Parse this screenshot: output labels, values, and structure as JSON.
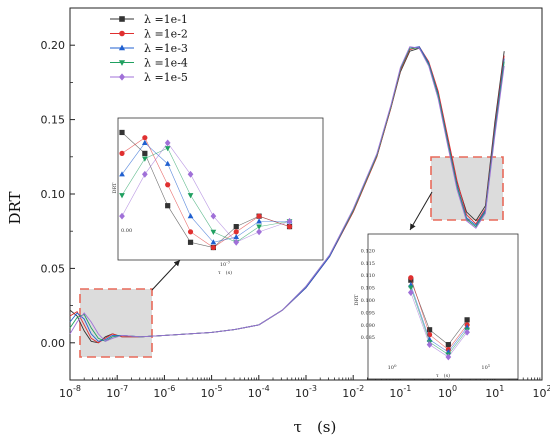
{
  "chart_data": {
    "type": "line",
    "title": "",
    "xlabel": "τ　(s)",
    "ylabel": "DRT",
    "x_scale": "log",
    "xlim": [
      "1e-8",
      "1e2"
    ],
    "ylim": [
      -0.025,
      0.225
    ],
    "x_tick_labels": [
      {
        "base": "10",
        "exp": "-8"
      },
      {
        "base": "10",
        "exp": "-7"
      },
      {
        "base": "10",
        "exp": "-6"
      },
      {
        "base": "10",
        "exp": "-5"
      },
      {
        "base": "10",
        "exp": "-4"
      },
      {
        "base": "10",
        "exp": "-3"
      },
      {
        "base": "10",
        "exp": "-2"
      },
      {
        "base": "10",
        "exp": "-1"
      },
      {
        "base": "10",
        "exp": "0"
      },
      {
        "base": "10",
        "exp": "1"
      },
      {
        "base": "10",
        "exp": "2"
      }
    ],
    "y_ticks": [
      0.0,
      0.05,
      0.1,
      0.15,
      0.2
    ],
    "y_tick_labels": [
      "0.00",
      "0.05",
      "0.10",
      "0.15",
      "0.20"
    ],
    "legend_position": "top-left",
    "x_log10": [
      -8.0,
      -7.85,
      -7.7,
      -7.55,
      -7.4,
      -7.25,
      -7.1,
      -6.9,
      -6.5,
      -6.0,
      -5.5,
      -5.0,
      -4.5,
      -4.0,
      -3.5,
      -3.0,
      -2.5,
      -2.0,
      -1.5,
      -1.2,
      -1.0,
      -0.8,
      -0.6,
      -0.4,
      -0.2,
      0.0,
      0.2,
      0.4,
      0.6,
      0.8,
      1.0,
      1.2
    ],
    "series": [
      {
        "name": "λ =1e-1",
        "color": "#333333",
        "marker": "square",
        "values": [
          0.022,
          0.018,
          0.008,
          0.001,
          0.0,
          0.004,
          0.006,
          0.004,
          0.004,
          0.005,
          0.006,
          0.007,
          0.009,
          0.012,
          0.022,
          0.037,
          0.058,
          0.088,
          0.125,
          0.158,
          0.182,
          0.196,
          0.198,
          0.188,
          0.168,
          0.138,
          0.108,
          0.088,
          0.082,
          0.092,
          0.148,
          0.196
        ]
      },
      {
        "name": "λ =1e-2",
        "color": "#e03030",
        "marker": "circle",
        "values": [
          0.018,
          0.021,
          0.012,
          0.003,
          0.0,
          0.003,
          0.006,
          0.004,
          0.004,
          0.005,
          0.006,
          0.007,
          0.009,
          0.012,
          0.022,
          0.037,
          0.058,
          0.088,
          0.125,
          0.158,
          0.183,
          0.197,
          0.199,
          0.189,
          0.169,
          0.139,
          0.109,
          0.086,
          0.08,
          0.09,
          0.145,
          0.193
        ]
      },
      {
        "name": "λ =1e-3",
        "color": "#2060d0",
        "marker": "triangle-up",
        "values": [
          0.014,
          0.02,
          0.016,
          0.006,
          0.001,
          0.002,
          0.005,
          0.005,
          0.004,
          0.005,
          0.006,
          0.007,
          0.009,
          0.012,
          0.022,
          0.037,
          0.058,
          0.089,
          0.126,
          0.159,
          0.184,
          0.198,
          0.199,
          0.188,
          0.167,
          0.136,
          0.106,
          0.084,
          0.079,
          0.089,
          0.143,
          0.191
        ]
      },
      {
        "name": "λ =1e-4",
        "color": "#20a060",
        "marker": "triangle-down",
        "values": [
          0.01,
          0.017,
          0.019,
          0.01,
          0.003,
          0.001,
          0.004,
          0.005,
          0.004,
          0.005,
          0.006,
          0.007,
          0.009,
          0.012,
          0.022,
          0.038,
          0.059,
          0.089,
          0.126,
          0.159,
          0.184,
          0.198,
          0.198,
          0.187,
          0.166,
          0.135,
          0.105,
          0.083,
          0.078,
          0.088,
          0.141,
          0.189
        ]
      },
      {
        "name": "λ =1e-5",
        "color": "#a070d8",
        "marker": "diamond",
        "values": [
          0.006,
          0.014,
          0.02,
          0.014,
          0.006,
          0.001,
          0.003,
          0.005,
          0.004,
          0.005,
          0.006,
          0.007,
          0.009,
          0.012,
          0.022,
          0.038,
          0.059,
          0.09,
          0.127,
          0.16,
          0.185,
          0.199,
          0.198,
          0.186,
          0.164,
          0.133,
          0.103,
          0.082,
          0.077,
          0.087,
          0.139,
          0.186
        ]
      }
    ],
    "inset_left": {
      "ylabel": "DRT",
      "y_tick_label": "0.00",
      "x_tick_label": {
        "base": "10",
        "exp": "-7"
      },
      "xlabel": "τ　(s)"
    },
    "inset_right": {
      "ylabel": "DRT",
      "y_tick_labels": [
        "0.120",
        "0.115",
        "0.110",
        "0.105",
        "0.100",
        "0.095",
        "0.090",
        "0.085"
      ],
      "x_tick_labels": [
        {
          "base": "10",
          "exp": "0"
        },
        {
          "base": "10",
          "exp": "1"
        }
      ],
      "xlabel": "τ　(s)"
    }
  }
}
